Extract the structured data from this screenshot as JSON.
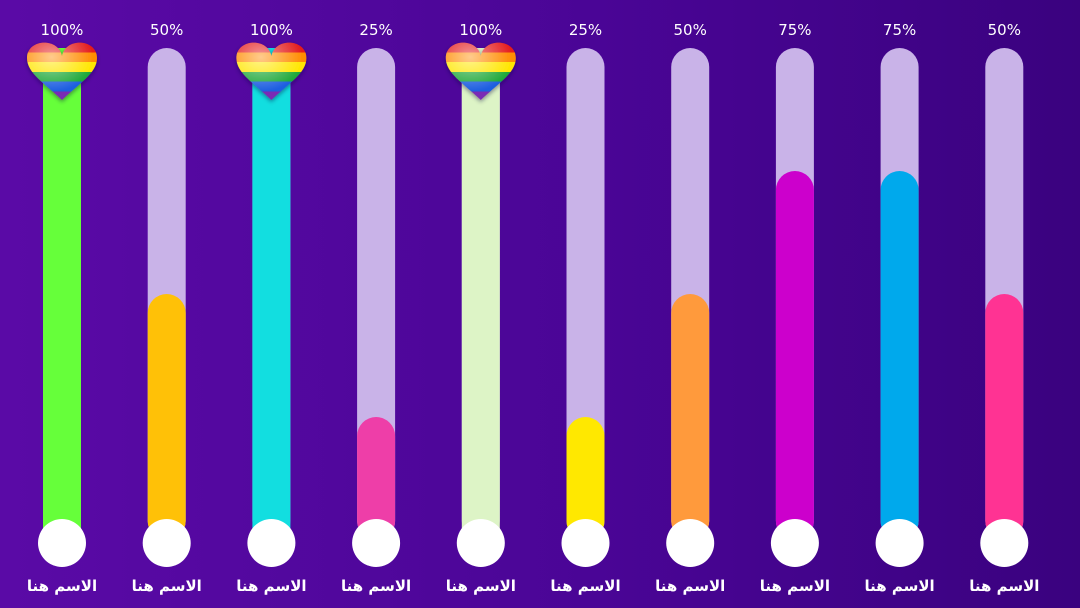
{
  "chart_data": {
    "type": "bar",
    "orientation": "vertical",
    "ylim": [
      0,
      100
    ],
    "value_suffix": "%",
    "categories": [
      "الاسم هنا",
      "الاسم هنا",
      "الاسم هنا",
      "الاسم هنا",
      "الاسم هنا",
      "الاسم هنا",
      "الاسم هنا",
      "الاسم هنا",
      "الاسم هنا",
      "الاسم هنا"
    ],
    "values": [
      100,
      50,
      100,
      25,
      100,
      25,
      50,
      75,
      75,
      50
    ],
    "value_labels": [
      "100%",
      "50%",
      "100%",
      "25%",
      "100%",
      "25%",
      "50%",
      "75%",
      "75%",
      "50%"
    ],
    "colors": [
      "#66ff3a",
      "#ffc107",
      "#12dee0",
      "#ee3ea8",
      "#ddf4c6",
      "#ffe800",
      "#ff9a3c",
      "#cc00cc",
      "#00a9ec",
      "#ff3393"
    ],
    "track_color": "#c9b3e8",
    "marker_icon": "rainbow-heart-icon",
    "marker_on_bars": [
      0,
      2,
      4
    ],
    "background_colors": [
      "#5a0aa6",
      "#3a027f"
    ],
    "grid": false,
    "legend": "none"
  }
}
